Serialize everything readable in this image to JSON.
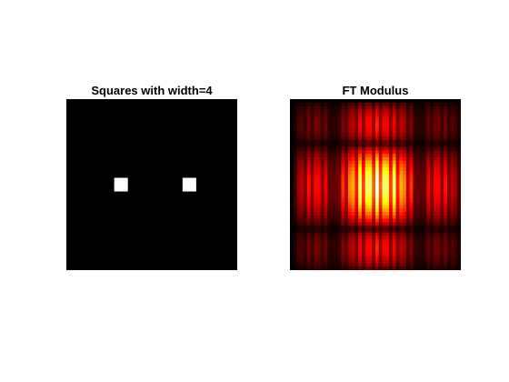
{
  "chart_data": [
    {
      "type": "heatmap",
      "title": "Squares with width=4",
      "colormap": "gray",
      "background_color": "#000000",
      "grid_size": 50,
      "square_width": 4,
      "squares": [
        {
          "col": 14,
          "row": 23,
          "value": 1
        },
        {
          "col": 34,
          "row": 23,
          "value": 1
        }
      ],
      "square_color": "#ffffff",
      "xlabel": "",
      "ylabel": ""
    },
    {
      "type": "heatmap",
      "title": "FT Modulus",
      "colormap": "hot",
      "grid_size": 50,
      "square_width": 4,
      "square_separation": 20,
      "xlabel": "",
      "ylabel": ""
    }
  ]
}
